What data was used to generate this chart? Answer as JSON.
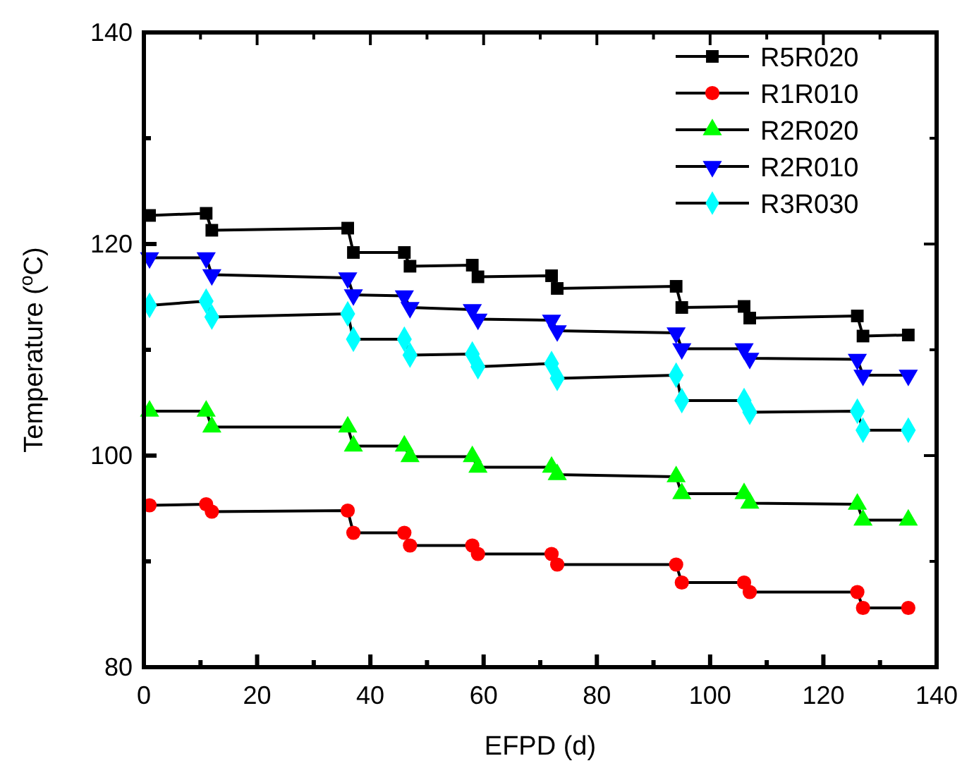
{
  "chart_data": {
    "type": "line",
    "xlabel": "EFPD (d)",
    "ylabel": "Temperature ($^{o}$C)",
    "x": [
      1,
      11,
      12,
      36,
      37,
      46,
      47,
      58,
      59,
      72,
      73,
      94,
      95,
      106,
      107,
      126,
      127,
      135
    ],
    "xlim": [
      0,
      140
    ],
    "xticks": [
      0,
      {
        "value": 10,
        "label": null
      },
      20,
      {
        "value": 30,
        "label": null
      },
      40,
      {
        "value": 50,
        "label": null
      },
      60,
      {
        "value": 70,
        "label": null
      },
      80,
      {
        "value": 90,
        "label": null
      },
      100,
      {
        "value": 110,
        "label": null
      },
      120,
      {
        "value": 130,
        "label": null
      },
      140
    ],
    "ylim": [
      80,
      140
    ],
    "yticks": [
      80,
      {
        "value": 90,
        "label": null
      },
      100,
      {
        "value": 110,
        "label": null
      },
      120,
      {
        "value": 130,
        "label": null
      },
      140
    ],
    "legend": "top right",
    "grid": false,
    "series": [
      {
        "name": "R5R020",
        "color": "#000000",
        "marker": "square",
        "values": [
          122.7,
          122.9,
          121.3,
          121.5,
          119.2,
          119.2,
          117.9,
          118.0,
          116.9,
          117.0,
          115.8,
          116.0,
          114.0,
          114.1,
          113.0,
          113.2,
          111.3,
          111.4
        ]
      },
      {
        "name": "R1R010",
        "color": "#ff0000",
        "marker": "circle",
        "values": [
          95.3,
          95.4,
          94.7,
          94.8,
          92.7,
          92.7,
          91.5,
          91.5,
          90.7,
          90.7,
          89.7,
          89.7,
          88.0,
          88.0,
          87.1,
          87.1,
          85.6,
          85.6
        ]
      },
      {
        "name": "R2R020",
        "color": "#00ff00",
        "marker": "triangle",
        "values": [
          104.2,
          104.2,
          102.7,
          102.7,
          100.9,
          100.9,
          99.9,
          99.9,
          98.9,
          98.9,
          98.2,
          98.0,
          96.4,
          96.4,
          95.5,
          95.4,
          93.9,
          93.9
        ]
      },
      {
        "name": "R2R010",
        "color": "#0000ff",
        "marker": "triangle-down",
        "values": [
          118.7,
          118.7,
          117.1,
          116.8,
          115.2,
          115.1,
          114.0,
          113.8,
          112.9,
          112.8,
          111.8,
          111.6,
          110.1,
          110.1,
          109.2,
          109.1,
          107.6,
          107.6
        ]
      },
      {
        "name": "R3R030",
        "color": "#00ffff",
        "marker": "diamond",
        "values": [
          114.2,
          114.6,
          113.1,
          113.4,
          111.0,
          111.0,
          109.5,
          109.6,
          108.4,
          108.7,
          107.3,
          107.6,
          105.2,
          105.2,
          104.1,
          104.2,
          102.4,
          102.4
        ]
      }
    ]
  }
}
